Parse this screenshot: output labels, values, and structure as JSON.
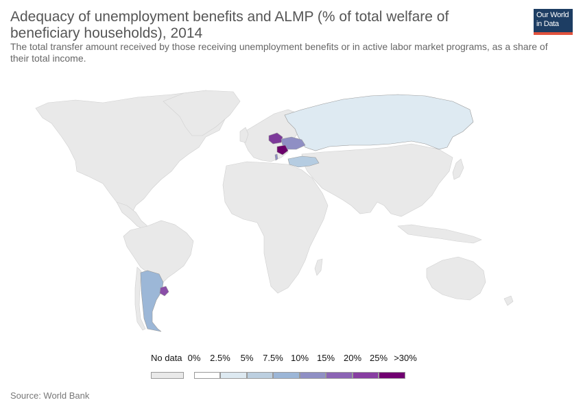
{
  "header": {
    "title": "Adequacy of unemployment benefits and ALMP (% of total welfare of beneficiary households), 2014",
    "subtitle": "The total transfer amount received by those receiving unemployment benefits or in active labor market programs, as a share of their total income.",
    "logo_line1": "Our World",
    "logo_line2": "in Data"
  },
  "legend": {
    "no_data_label": "No data",
    "no_data_color": "#e9e9e9",
    "stops": [
      "0%",
      "2.5%",
      "5%",
      "7.5%",
      "10%",
      "15%",
      "20%",
      "25%",
      ">30%"
    ],
    "colors": [
      "#ffffff",
      "#dde9f1",
      "#bccfe0",
      "#9cb6d7",
      "#8f8fc4",
      "#8b64b4",
      "#873ea1",
      "#700070"
    ]
  },
  "colors": {
    "land": "#e9e9e9",
    "border": "#cfcfcf",
    "russia": "#deeaf2",
    "turkey": "#b5cce1",
    "argentina": "#9cb7d7",
    "uruguay": "#8a4ea8",
    "poland": "#7d3a9a",
    "ukraine": "#8f8fc4",
    "romania": "#6a006a",
    "albania": "#8f8fc4"
  },
  "map_data": {
    "Russia": "5%",
    "Turkey": "5-7.5%",
    "Argentina": "7.5-10%",
    "Uruguay": "20-25%",
    "Poland": "20-25%",
    "Ukraine": "10-15%",
    "Romania": ">30%",
    "Albania": "10-15%"
  },
  "footer": {
    "source": "Source: World Bank"
  }
}
